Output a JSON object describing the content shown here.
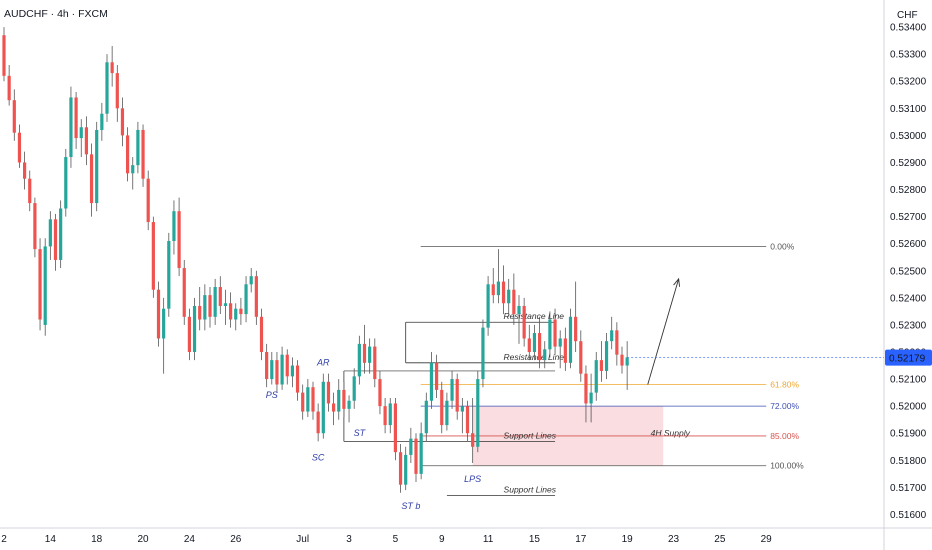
{
  "header": {
    "symbol": "AUDCHF · 4h · FXCM"
  },
  "chart_data": {
    "type": "candlestick",
    "symbol": "AUDCHF",
    "timeframe": "4h",
    "source": "FXCM",
    "currency": "CHF",
    "last_price": 0.52179,
    "last_price_label": "0.52179",
    "ylim": [
      0.5155,
      0.535
    ],
    "y_ticks": [
      0.516,
      0.517,
      0.518,
      0.519,
      0.52,
      0.521,
      0.522,
      0.523,
      0.524,
      0.525,
      0.526,
      0.527,
      0.528,
      0.529,
      0.53,
      0.531,
      0.532,
      0.533,
      0.534
    ],
    "y_tick_labels": [
      "0.51600",
      "0.51700",
      "0.51800",
      "0.51900",
      "0.52000",
      "0.52100",
      "0.52200",
      "0.52300",
      "0.52400",
      "0.52500",
      "0.52600",
      "0.52700",
      "0.52800",
      "0.52900",
      "0.53000",
      "0.53100",
      "0.53200",
      "0.53300",
      "0.53400"
    ],
    "x_ticks": [
      {
        "label": "2",
        "idx": 0
      },
      {
        "label": "14",
        "idx": 9
      },
      {
        "label": "18",
        "idx": 18
      },
      {
        "label": "20",
        "idx": 27
      },
      {
        "label": "24",
        "idx": 36
      },
      {
        "label": "26",
        "idx": 45
      },
      {
        "label": "Jul",
        "idx": 58
      },
      {
        "label": "3",
        "idx": 67
      },
      {
        "label": "5",
        "idx": 76
      },
      {
        "label": "9",
        "idx": 85
      },
      {
        "label": "11",
        "idx": 94
      },
      {
        "label": "15",
        "idx": 103
      },
      {
        "label": "17",
        "idx": 112
      },
      {
        "label": "19",
        "idx": 121
      },
      {
        "label": "23",
        "idx": 130
      },
      {
        "label": "25",
        "idx": 139
      },
      {
        "label": "29",
        "idx": 148
      }
    ],
    "candles": [
      [
        0.5337,
        0.534,
        0.532,
        0.5322
      ],
      [
        0.5322,
        0.5326,
        0.5311,
        0.5313
      ],
      [
        0.5313,
        0.5317,
        0.5298,
        0.5301
      ],
      [
        0.5301,
        0.5304,
        0.5288,
        0.529
      ],
      [
        0.529,
        0.5294,
        0.528,
        0.5284
      ],
      [
        0.5284,
        0.5287,
        0.5272,
        0.5275
      ],
      [
        0.5275,
        0.5277,
        0.5255,
        0.5258
      ],
      [
        0.5258,
        0.5262,
        0.5228,
        0.5232
      ],
      [
        0.523,
        0.5262,
        0.5226,
        0.5259
      ],
      [
        0.5259,
        0.5272,
        0.5254,
        0.5269
      ],
      [
        0.5269,
        0.5271,
        0.525,
        0.5254
      ],
      [
        0.5254,
        0.5276,
        0.5251,
        0.5273
      ],
      [
        0.5273,
        0.5295,
        0.527,
        0.5292
      ],
      [
        0.5292,
        0.5318,
        0.5288,
        0.5314
      ],
      [
        0.5314,
        0.5316,
        0.5295,
        0.5299
      ],
      [
        0.5299,
        0.5306,
        0.5292,
        0.5303
      ],
      [
        0.5303,
        0.5307,
        0.5289,
        0.5293
      ],
      [
        0.5293,
        0.5297,
        0.527,
        0.5275
      ],
      [
        0.5275,
        0.5305,
        0.5272,
        0.5302
      ],
      [
        0.5302,
        0.5312,
        0.5298,
        0.5308
      ],
      [
        0.5308,
        0.533,
        0.5305,
        0.5327
      ],
      [
        0.5327,
        0.5333,
        0.5318,
        0.5323
      ],
      [
        0.5323,
        0.5326,
        0.5305,
        0.531
      ],
      [
        0.531,
        0.5314,
        0.5296,
        0.53
      ],
      [
        0.53,
        0.5303,
        0.5283,
        0.5286
      ],
      [
        0.5286,
        0.5292,
        0.528,
        0.5289
      ],
      [
        0.5289,
        0.5305,
        0.5286,
        0.5302
      ],
      [
        0.5302,
        0.5304,
        0.5281,
        0.5284
      ],
      [
        0.5284,
        0.5287,
        0.5265,
        0.5268
      ],
      [
        0.5268,
        0.527,
        0.524,
        0.5243
      ],
      [
        0.5243,
        0.5246,
        0.5222,
        0.5225
      ],
      [
        0.5225,
        0.524,
        0.5212,
        0.5236
      ],
      [
        0.5236,
        0.5264,
        0.5233,
        0.5261
      ],
      [
        0.5261,
        0.5276,
        0.5256,
        0.5272
      ],
      [
        0.5272,
        0.5277,
        0.5248,
        0.5251
      ],
      [
        0.5251,
        0.5254,
        0.523,
        0.5233
      ],
      [
        0.5233,
        0.5236,
        0.5217,
        0.522
      ],
      [
        0.522,
        0.524,
        0.5217,
        0.5237
      ],
      [
        0.5237,
        0.5244,
        0.5228,
        0.5232
      ],
      [
        0.5232,
        0.5245,
        0.5228,
        0.5241
      ],
      [
        0.5241,
        0.5244,
        0.5229,
        0.5233
      ],
      [
        0.5233,
        0.5247,
        0.523,
        0.5244
      ],
      [
        0.5244,
        0.5248,
        0.5234,
        0.5237
      ],
      [
        0.5237,
        0.5243,
        0.523,
        0.5238
      ],
      [
        0.5238,
        0.5242,
        0.5229,
        0.5232
      ],
      [
        0.5232,
        0.5238,
        0.5228,
        0.5236
      ],
      [
        0.5236,
        0.524,
        0.523,
        0.5234
      ],
      [
        0.5234,
        0.5248,
        0.5231,
        0.5245
      ],
      [
        0.5245,
        0.5251,
        0.5242,
        0.5248
      ],
      [
        0.5248,
        0.525,
        0.523,
        0.5233
      ],
      [
        0.5233,
        0.5236,
        0.5217,
        0.522
      ],
      [
        0.522,
        0.5223,
        0.5207,
        0.521
      ],
      [
        0.521,
        0.522,
        0.5208,
        0.5217
      ],
      [
        0.5217,
        0.522,
        0.5205,
        0.5208
      ],
      [
        0.5208,
        0.5222,
        0.5206,
        0.5219
      ],
      [
        0.5219,
        0.5221,
        0.5208,
        0.5211
      ],
      [
        0.5211,
        0.5218,
        0.5207,
        0.5215
      ],
      [
        0.5215,
        0.5217,
        0.5202,
        0.5205
      ],
      [
        0.5205,
        0.5208,
        0.5195,
        0.5198
      ],
      [
        0.5198,
        0.521,
        0.5196,
        0.5207
      ],
      [
        0.5207,
        0.5209,
        0.5195,
        0.5198
      ],
      [
        0.5198,
        0.5201,
        0.5187,
        0.519
      ],
      [
        0.519,
        0.5212,
        0.5188,
        0.5209
      ],
      [
        0.5209,
        0.5212,
        0.5198,
        0.5201
      ],
      [
        0.5201,
        0.5205,
        0.5193,
        0.5198
      ],
      [
        0.5198,
        0.521,
        0.5195,
        0.5206
      ],
      [
        0.5206,
        0.5209,
        0.5196,
        0.5199
      ],
      [
        0.5199,
        0.5204,
        0.5194,
        0.5202
      ],
      [
        0.5202,
        0.5214,
        0.5199,
        0.5211
      ],
      [
        0.5211,
        0.5226,
        0.5208,
        0.5223
      ],
      [
        0.5223,
        0.523,
        0.5212,
        0.5216
      ],
      [
        0.5216,
        0.5225,
        0.5212,
        0.5222
      ],
      [
        0.5222,
        0.5225,
        0.5207,
        0.521
      ],
      [
        0.521,
        0.5213,
        0.5197,
        0.52
      ],
      [
        0.52,
        0.5203,
        0.519,
        0.5193
      ],
      [
        0.5193,
        0.5203,
        0.519,
        0.5201
      ],
      [
        0.5201,
        0.5203,
        0.518,
        0.5183
      ],
      [
        0.5183,
        0.5186,
        0.5168,
        0.5171
      ],
      [
        0.5171,
        0.5185,
        0.5169,
        0.5182
      ],
      [
        0.5182,
        0.5192,
        0.5179,
        0.5188
      ],
      [
        0.5188,
        0.519,
        0.5172,
        0.5175
      ],
      [
        0.5175,
        0.5194,
        0.5173,
        0.519
      ],
      [
        0.519,
        0.5205,
        0.5187,
        0.5202
      ],
      [
        0.5202,
        0.522,
        0.5199,
        0.5216
      ],
      [
        0.5216,
        0.5219,
        0.5203,
        0.5206
      ],
      [
        0.5206,
        0.5209,
        0.519,
        0.5193
      ],
      [
        0.5193,
        0.5205,
        0.5191,
        0.5202
      ],
      [
        0.5202,
        0.5213,
        0.5199,
        0.521
      ],
      [
        0.521,
        0.5212,
        0.5195,
        0.5198
      ],
      [
        0.5198,
        0.5203,
        0.519,
        0.52
      ],
      [
        0.52,
        0.5202,
        0.5187,
        0.519
      ],
      [
        0.519,
        0.5203,
        0.5179,
        0.5185
      ],
      [
        0.5185,
        0.5213,
        0.5183,
        0.521
      ],
      [
        0.521,
        0.5232,
        0.5207,
        0.5229
      ],
      [
        0.5229,
        0.5248,
        0.5226,
        0.5245
      ],
      [
        0.5245,
        0.5251,
        0.5238,
        0.5241
      ],
      [
        0.5241,
        0.5258,
        0.5238,
        0.5246
      ],
      [
        0.5246,
        0.5252,
        0.5234,
        0.5238
      ],
      [
        0.5238,
        0.5247,
        0.5233,
        0.5243
      ],
      [
        0.5243,
        0.5249,
        0.523,
        0.5234
      ],
      [
        0.5234,
        0.5241,
        0.5223,
        0.5237
      ],
      [
        0.5237,
        0.524,
        0.5222,
        0.5225
      ],
      [
        0.5225,
        0.523,
        0.5217,
        0.522
      ],
      [
        0.522,
        0.523,
        0.5217,
        0.5227
      ],
      [
        0.5227,
        0.5233,
        0.5214,
        0.5217
      ],
      [
        0.5217,
        0.5224,
        0.5214,
        0.5221
      ],
      [
        0.5221,
        0.5235,
        0.5218,
        0.5232
      ],
      [
        0.5232,
        0.5236,
        0.5219,
        0.5222
      ],
      [
        0.5222,
        0.5228,
        0.5214,
        0.5225
      ],
      [
        0.5225,
        0.5229,
        0.5213,
        0.5216
      ],
      [
        0.5216,
        0.5236,
        0.5214,
        0.5233
      ],
      [
        0.5233,
        0.5246,
        0.522,
        0.5224
      ],
      [
        0.5224,
        0.5228,
        0.5209,
        0.5212
      ],
      [
        0.5212,
        0.5215,
        0.5194,
        0.5201
      ],
      [
        0.5201,
        0.5212,
        0.5194,
        0.5205
      ],
      [
        0.5205,
        0.522,
        0.5202,
        0.5217
      ],
      [
        0.5217,
        0.5224,
        0.5209,
        0.5213
      ],
      [
        0.5213,
        0.5227,
        0.521,
        0.5224
      ],
      [
        0.5224,
        0.5233,
        0.5221,
        0.5228
      ],
      [
        0.5228,
        0.5231,
        0.5215,
        0.5219
      ],
      [
        0.5219,
        0.5222,
        0.5212,
        0.5215
      ],
      [
        0.5215,
        0.5224,
        0.5206,
        0.5218
      ]
    ],
    "levels": {
      "resistance_1": 0.5231,
      "resistance_2": 0.5216,
      "support_1": 0.5187,
      "support_2": 0.5167,
      "sc_low": 0.5187
    },
    "fibonacci": [
      {
        "label": "0.00%",
        "price": 0.5259,
        "color": "#555555"
      },
      {
        "label": "61.80%",
        "price": 0.5208,
        "color": "#f0a830"
      },
      {
        "label": "72.00%",
        "price": 0.52,
        "color": "#3f51b5"
      },
      {
        "label": "85.00%",
        "price": 0.5189,
        "color": "#d9534f"
      },
      {
        "label": "100.00%",
        "price": 0.5178,
        "color": "#555555"
      }
    ],
    "annotations": [
      {
        "text": "PS",
        "idx": 52,
        "price": 0.5203
      },
      {
        "text": "AR",
        "idx": 62,
        "price": 0.5215
      },
      {
        "text": "ST",
        "idx": 69,
        "price": 0.5189
      },
      {
        "text": "SC",
        "idx": 61,
        "price": 0.518
      },
      {
        "text": "ST b",
        "idx": 79,
        "price": 0.5162
      },
      {
        "text": "LPS",
        "idx": 91,
        "price": 0.5172
      }
    ],
    "line_labels": {
      "resistance_line_1": "Resistance Line",
      "resistance_line_2": "Resistance Line",
      "support_lines_1": "Support Lines",
      "support_lines_2": "Support Lines",
      "supply_zone": "4H Supply"
    },
    "supply_zone": {
      "from_idx": 91,
      "to_idx": 128,
      "top": 0.52,
      "bottom": 0.5178
    },
    "projection": {
      "from_idx": 125,
      "from_price": 0.5208,
      "to_idx": 131,
      "to_price": 0.5247
    },
    "colors": {
      "up": "#26a69a",
      "down": "#ef5350",
      "wick": "#555555",
      "price_badge": "#2962ff",
      "supply_fill": "#f8d7dc"
    }
  }
}
